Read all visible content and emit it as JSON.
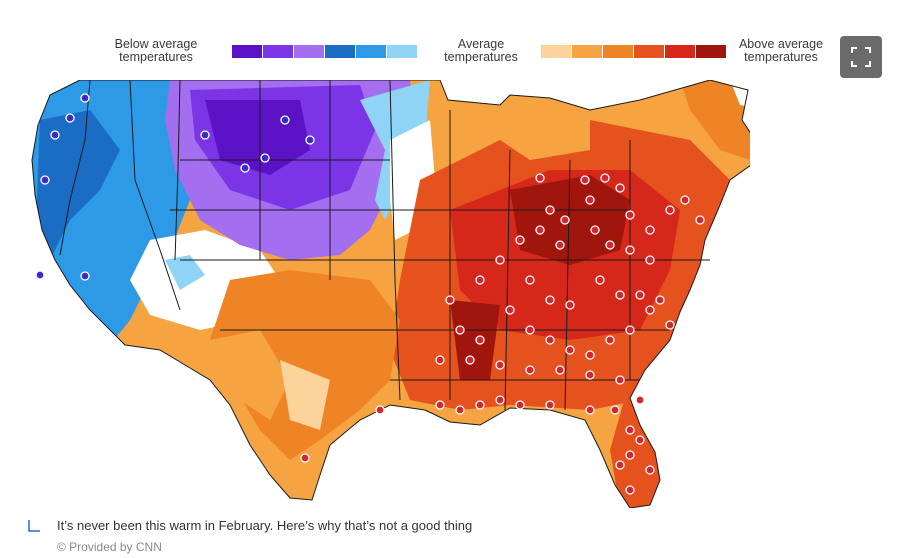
{
  "legend": {
    "below_label": "Below average temperatures",
    "average_label": "Average temperatures",
    "above_label": "Above average temperatures",
    "cold_swatches": [
      "#5b12c7",
      "#7b35e6",
      "#a46ef0",
      "#1a6cc4",
      "#2d9ae8",
      "#8fd4f7"
    ],
    "warm_swatches": [
      "#fcd39a",
      "#f6a341",
      "#ee8425",
      "#e6521e",
      "#d6281a",
      "#a1160c"
    ]
  },
  "map": {
    "colors": {
      "deep_purple": "#5b12c7",
      "purple": "#7b35e6",
      "light_purple": "#a46ef0",
      "deep_blue": "#1a6cc4",
      "blue": "#2d9ae8",
      "light_blue": "#8fd4f7",
      "white": "#ffffff",
      "pale_orange": "#fcd39a",
      "orange": "#f6a341",
      "dark_orange": "#ee8425",
      "red_orange": "#e6521e",
      "red": "#d6281a",
      "dark_red": "#a1160c",
      "border": "#1a1a1a"
    },
    "record_marker_warm": "#d9232d",
    "record_marker_cold": "#3a2bd0"
  },
  "expand_icon": "expand-icon",
  "caption": {
    "icon": "corner-arrow-icon",
    "text": "It’s never been this warm in February. Here’s why that’s not a good thing"
  },
  "credit": "© Provided by CNN"
}
